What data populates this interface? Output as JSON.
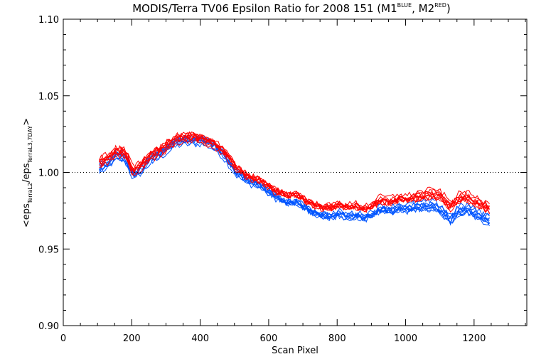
{
  "chart_data": {
    "type": "line",
    "title": {
      "main": "MODIS/Terra TV06 Epsilon Ratio for 2008 151 (M1",
      "sup1": "BLUE",
      "mid": ", M2",
      "sup2": "RED",
      "end": ")"
    },
    "xlabel": "Scan Pixel",
    "ylabel": {
      "open": "<eps",
      "sub1": "TerraL2",
      "slash": "/eps",
      "sub2": "TerraL3,7DAY",
      "close": ">"
    },
    "xlim": [
      0,
      1354
    ],
    "ylim": [
      0.9,
      1.1
    ],
    "x_ticks": [
      0,
      200,
      400,
      600,
      800,
      1000,
      1200
    ],
    "x_tick_labels": [
      "0",
      "200",
      "400",
      "600",
      "800",
      "1000",
      "1200"
    ],
    "y_ticks": [
      0.9,
      0.95,
      1.0,
      1.05,
      1.1
    ],
    "y_tick_labels": [
      "0.90",
      "0.95",
      "1.00",
      "1.05",
      "1.10"
    ],
    "reference_line": {
      "y": 1.0,
      "style": "dotted"
    },
    "x": [
      105,
      130,
      155,
      180,
      205,
      230,
      255,
      280,
      305,
      330,
      355,
      380,
      405,
      430,
      455,
      480,
      505,
      530,
      555,
      580,
      605,
      630,
      655,
      680,
      705,
      730,
      755,
      780,
      805,
      830,
      855,
      880,
      905,
      930,
      955,
      980,
      1005,
      1030,
      1055,
      1080,
      1105,
      1130,
      1155,
      1180,
      1205,
      1230,
      1250
    ],
    "series": [
      {
        "group": "M1",
        "color": "#0055ff",
        "values": [
          1.003,
          1.006,
          1.011,
          1.01,
          0.998,
          1.003,
          1.009,
          1.012,
          1.016,
          1.02,
          1.021,
          1.021,
          1.021,
          1.019,
          1.015,
          1.008,
          1.0,
          0.996,
          0.993,
          0.991,
          0.986,
          0.983,
          0.98,
          0.981,
          0.977,
          0.974,
          0.972,
          0.971,
          0.973,
          0.971,
          0.972,
          0.97,
          0.973,
          0.976,
          0.975,
          0.977,
          0.976,
          0.977,
          0.978,
          0.978,
          0.975,
          0.969,
          0.975,
          0.976,
          0.973,
          0.97,
          0.968
        ],
        "band": 0.006
      },
      {
        "group": "M2",
        "color": "#ff0000",
        "values": [
          1.007,
          1.009,
          1.014,
          1.013,
          1.001,
          1.005,
          1.011,
          1.014,
          1.018,
          1.022,
          1.023,
          1.023,
          1.022,
          1.02,
          1.017,
          1.011,
          1.003,
          0.999,
          0.996,
          0.994,
          0.99,
          0.987,
          0.985,
          0.986,
          0.982,
          0.979,
          0.977,
          0.977,
          0.979,
          0.977,
          0.978,
          0.976,
          0.979,
          0.982,
          0.981,
          0.983,
          0.982,
          0.984,
          0.985,
          0.986,
          0.984,
          0.978,
          0.983,
          0.984,
          0.981,
          0.978,
          0.976
        ],
        "band": 0.006
      }
    ],
    "lines_per_group": 9
  }
}
